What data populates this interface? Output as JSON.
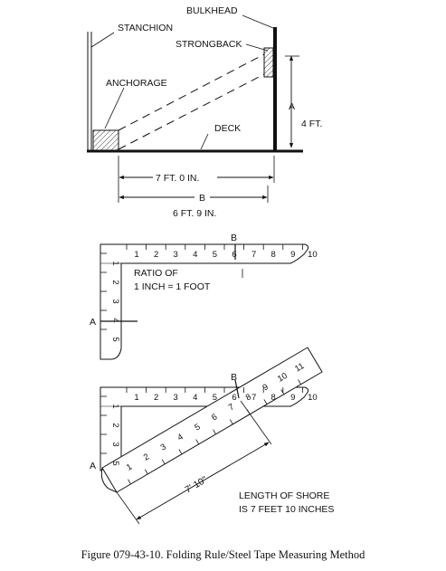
{
  "colors": {
    "ink": "#111111",
    "background": "#ffffff"
  },
  "top_diagram": {
    "bulkhead": "BULKHEAD",
    "stanchion": "STANCHION",
    "strongback": "STRONGBACK",
    "anchorage": "ANCHORAGE",
    "deck": "DECK",
    "height_letter": "A",
    "height_value": "4 FT.",
    "span_measure": "7 FT. 0 IN.",
    "base_letter": "B",
    "base_value": "6 FT. 9 IN."
  },
  "rule_diagram_1": {
    "mark_b": "B",
    "mark_a": "A",
    "horizontal_ticks": [
      "1",
      "2",
      "3",
      "4",
      "5",
      "6",
      "7",
      "8",
      "9",
      "10"
    ],
    "vertical_ticks": [
      "1",
      "2",
      "3",
      "4",
      "5"
    ],
    "ratio_line1": "RATIO OF",
    "ratio_line2": "1 INCH = 1 FOOT"
  },
  "rule_diagram_2": {
    "mark_b": "B",
    "mark_a": "A",
    "horizontal_ticks": [
      "1",
      "2",
      "3",
      "4",
      "5",
      "6",
      "7",
      "8",
      "9",
      "10"
    ],
    "vertical_ticks": [
      "1",
      "2",
      "3",
      "5"
    ],
    "tape_ticks": [
      "1",
      "2",
      "3",
      "4",
      "5",
      "6",
      "7",
      "8",
      "9",
      "10",
      "11"
    ],
    "tape_measure": "7' 10\"",
    "result_line1": "LENGTH OF SHORE",
    "result_line2": "IS 7 FEET 10 INCHES"
  },
  "caption": "Figure 079-43-10.  Folding Rule/Steel Tape Measuring Method"
}
